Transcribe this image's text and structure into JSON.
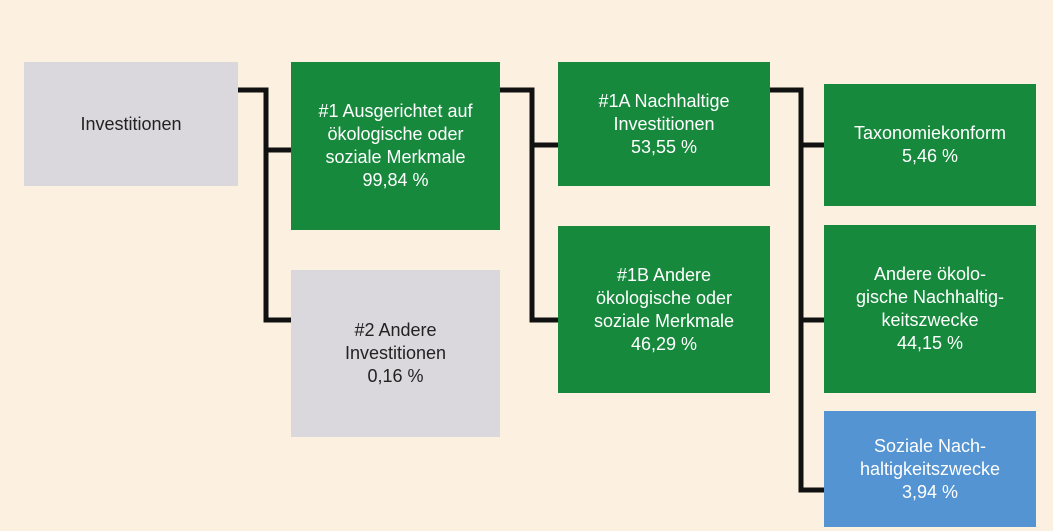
{
  "nodes": [
    {
      "lines": [
        "Investitionen"
      ]
    },
    {
      "lines": [
        "#1 Ausgerichtet auf",
        "ökologische oder",
        "soziale Merkmale",
        "99,84 %"
      ]
    },
    {
      "lines": [
        "#2 Andere",
        "Investitionen",
        "0,16 %"
      ]
    },
    {
      "lines": [
        "#1A Nachhaltige",
        "Investitionen",
        "53,55 %"
      ]
    },
    {
      "lines": [
        "#1B Andere",
        "ökologische oder",
        "soziale Merkmale",
        "46,29 %"
      ]
    },
    {
      "lines": [
        "Taxonomiekonform",
        "5,46 %"
      ]
    },
    {
      "lines": [
        "Andere ökolo-",
        "gische Nachhaltig-",
        "keitszwecke",
        "44,15 %"
      ]
    },
    {
      "lines": [
        "Soziale Nach-",
        "haltigkeitszwecke",
        "3,94 %"
      ]
    }
  ]
}
